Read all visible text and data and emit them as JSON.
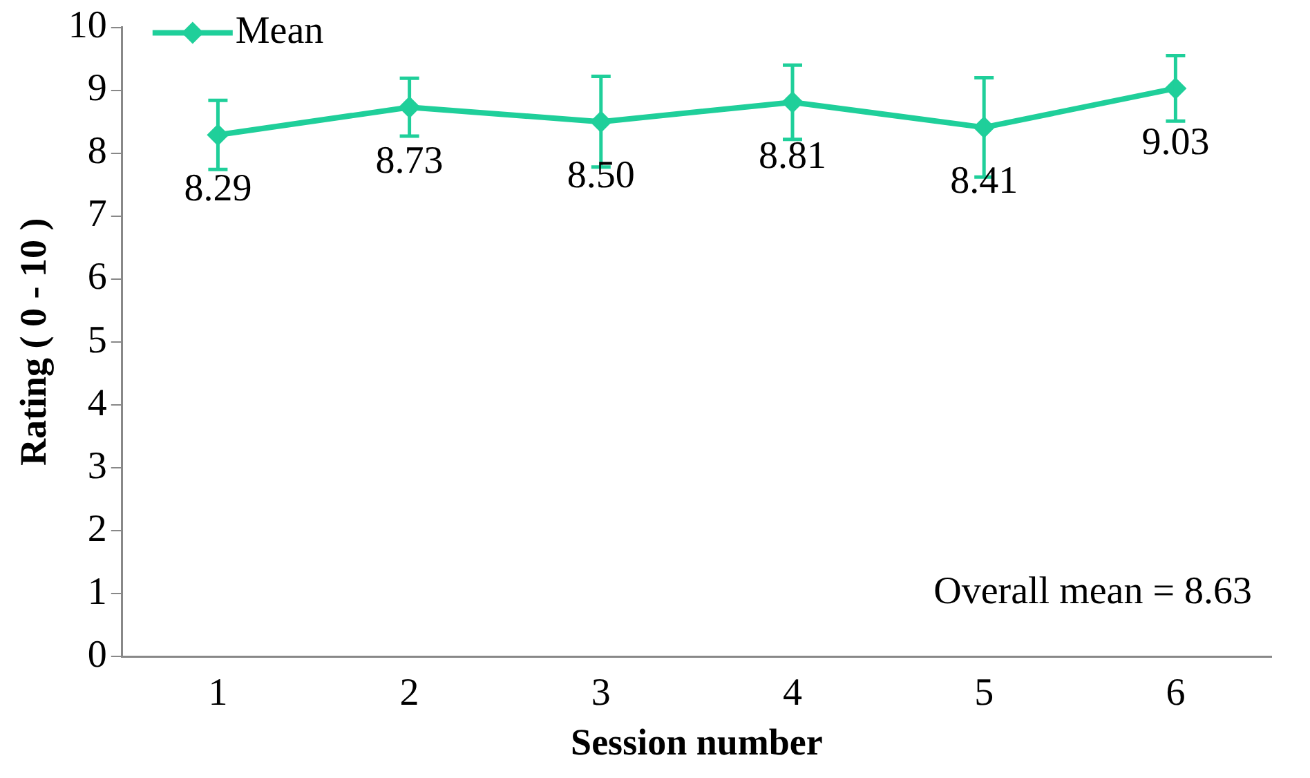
{
  "chart_data": {
    "type": "line",
    "xlabel": "Session number",
    "ylabel": "Rating ( 0 - 10 )",
    "categories": [
      "1",
      "2",
      "3",
      "4",
      "5",
      "6"
    ],
    "series": [
      {
        "name": "Mean",
        "color": "#1fcf9a",
        "values": [
          8.29,
          8.73,
          8.5,
          8.81,
          8.41,
          9.03
        ],
        "value_labels": [
          "8.29",
          "8.73",
          "8.50",
          "8.81",
          "8.41",
          "9.03"
        ],
        "errors": [
          0.55,
          0.46,
          0.72,
          0.59,
          0.79,
          0.52
        ]
      }
    ],
    "ylim": [
      0,
      10
    ],
    "yticks": [
      0,
      1,
      2,
      3,
      4,
      5,
      6,
      7,
      8,
      9,
      10
    ],
    "grid": false,
    "legend": "top left",
    "marker": "diamond",
    "line_style": "solid",
    "annotations": [
      "Overall mean = 8.63"
    ]
  }
}
